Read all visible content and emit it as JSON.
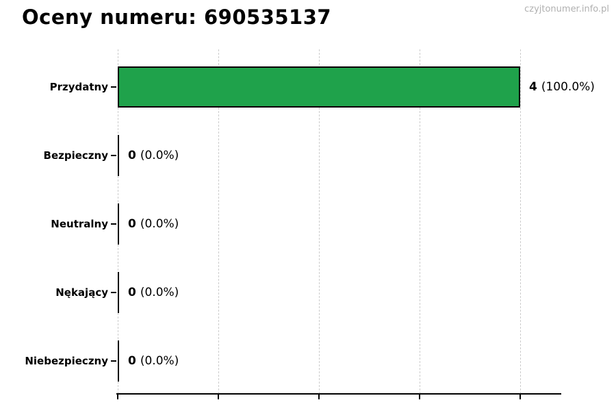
{
  "header": {
    "title": "Oceny numeru: 690535137",
    "watermark": "czyjtonumer.info.pl"
  },
  "chart_data": {
    "type": "bar",
    "orientation": "horizontal",
    "title": "Oceny numeru: 690535137",
    "categories": [
      "Przydatny",
      "Bezpieczny",
      "Neutralny",
      "Nękający",
      "Niebezpieczny"
    ],
    "values": [
      4,
      0,
      0,
      0,
      0
    ],
    "percent_labels": [
      "(100.0%)",
      "(0.0%)",
      "(0.0%)",
      "(0.0%)",
      "(0.0%)"
    ],
    "xlabel": "",
    "ylabel": "",
    "xlim": [
      0,
      4
    ],
    "x_ticks": [
      0,
      1,
      2,
      3,
      4
    ],
    "x_tick_labels_visible": false,
    "grid": "vertical-dashed",
    "legend": "none",
    "bar_color": "#1fa24b",
    "bar_edge_color": "#000000",
    "gridline_color": "#cccccc",
    "axis_color": "#000000"
  }
}
